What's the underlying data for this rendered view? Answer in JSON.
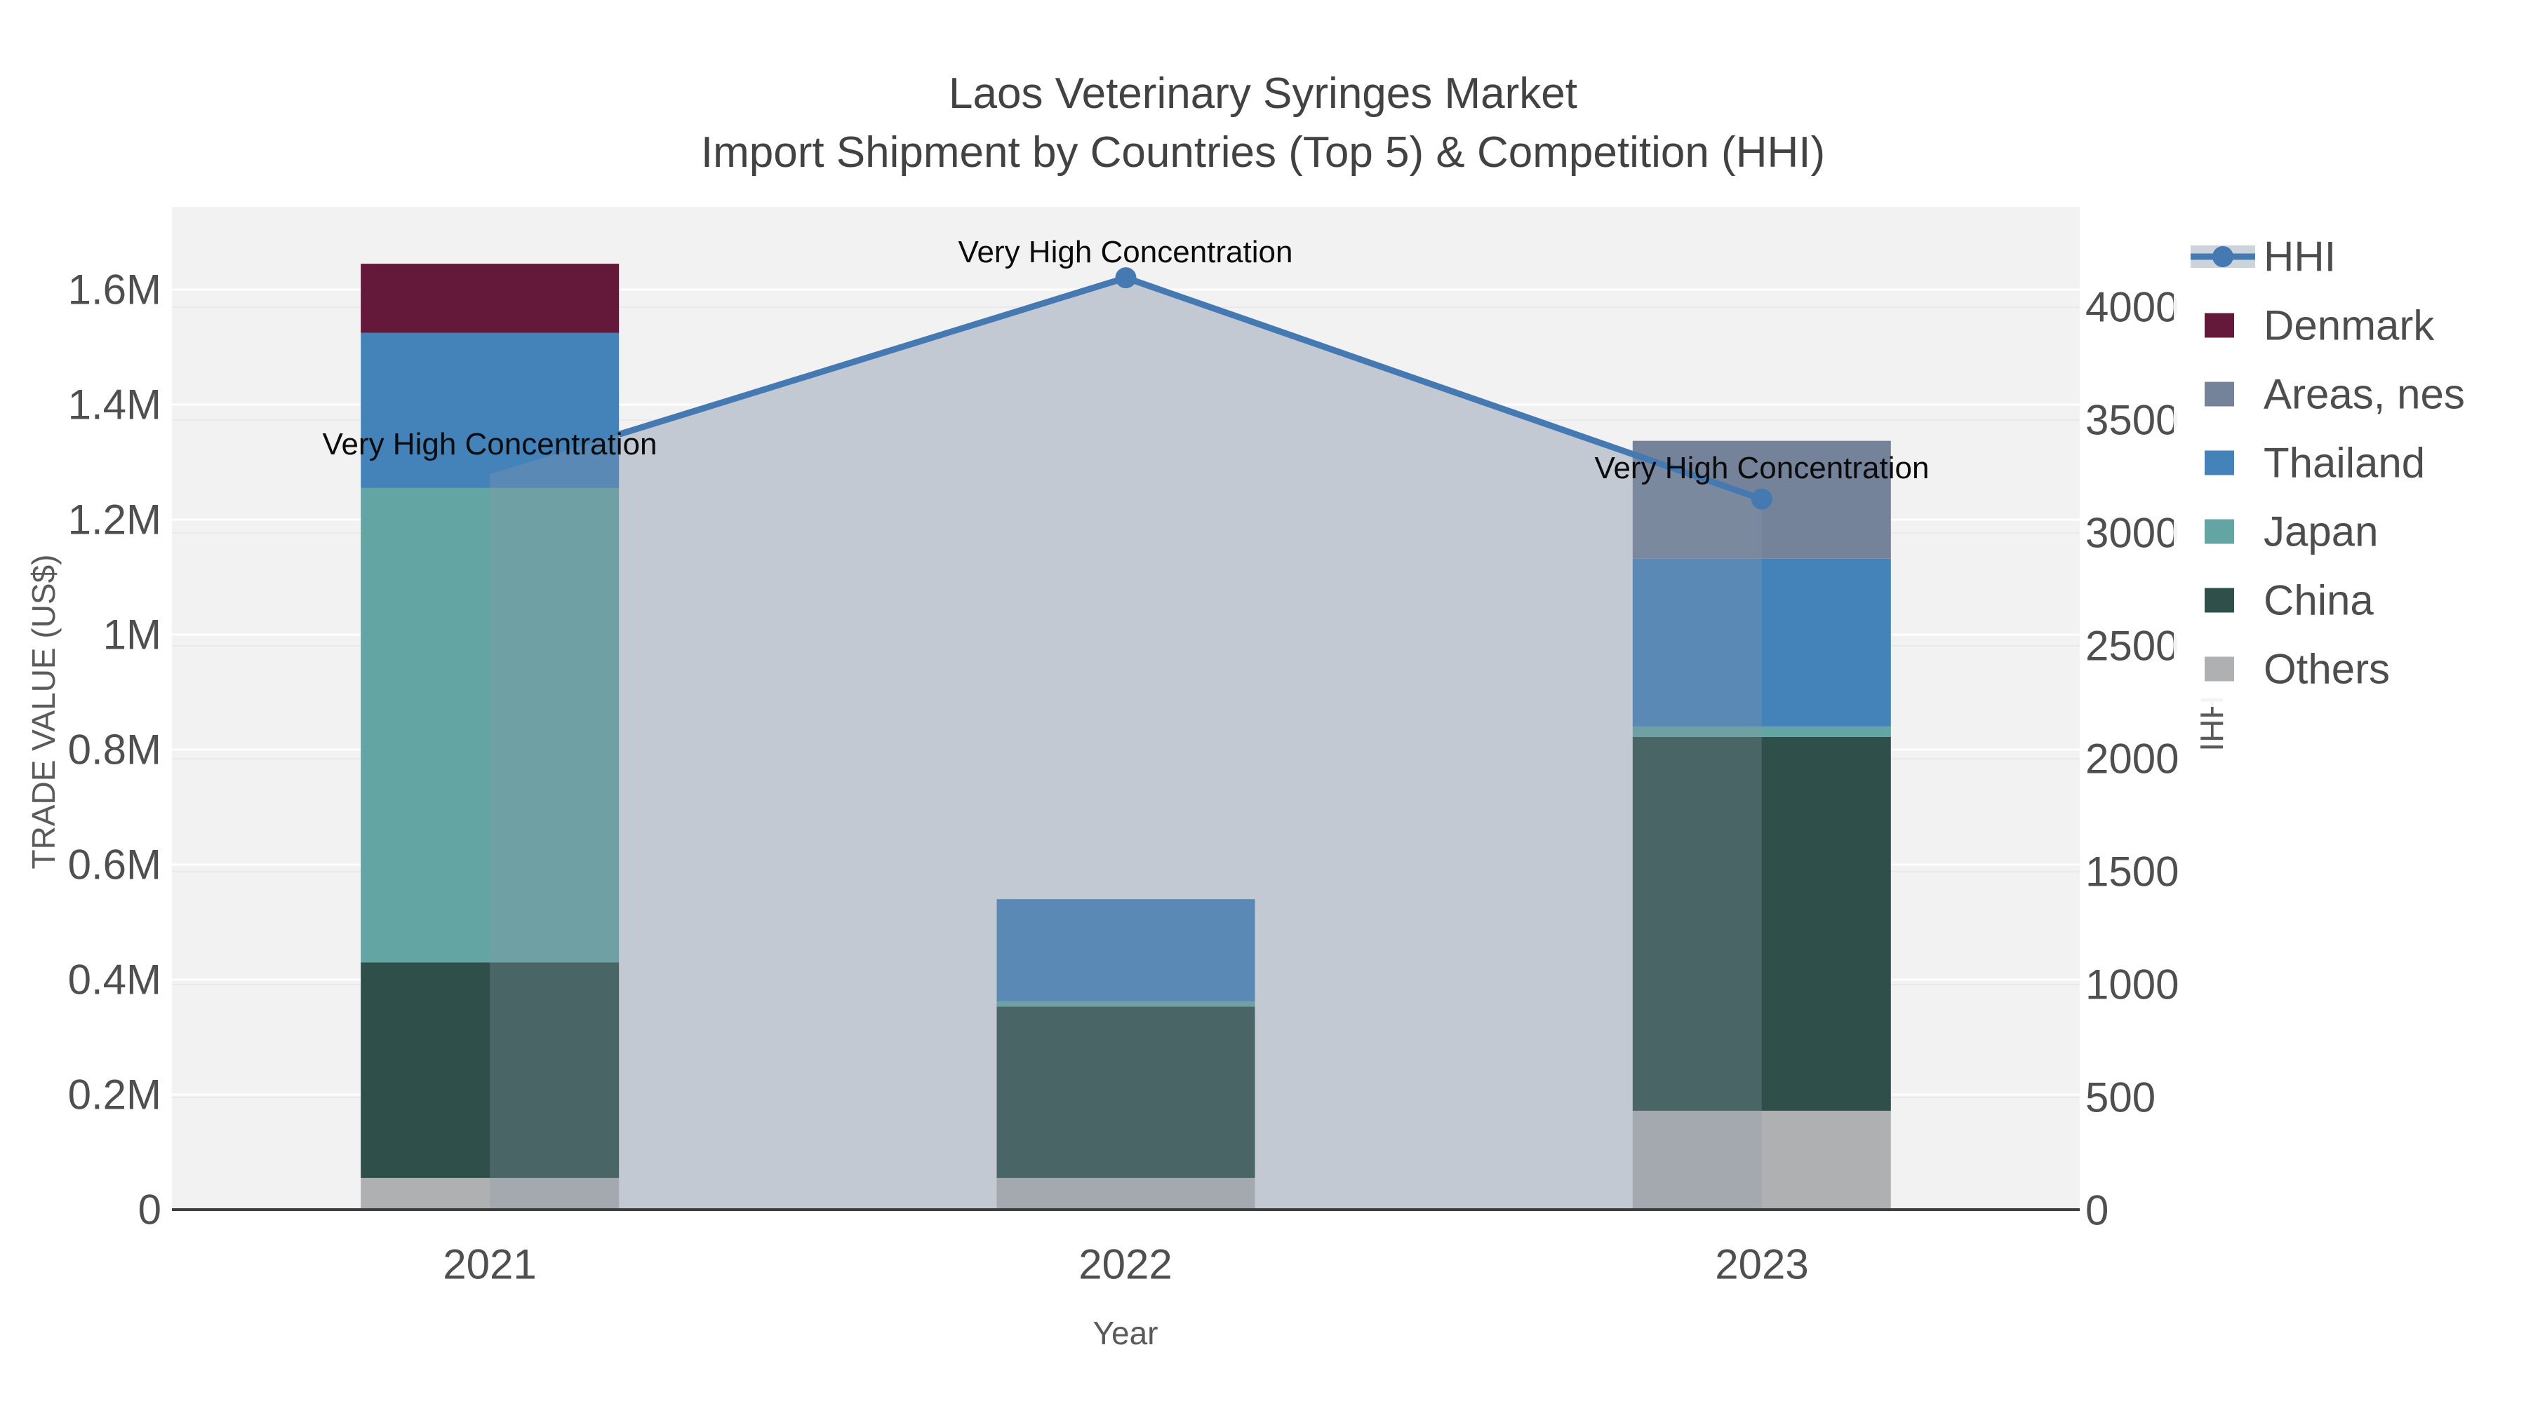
{
  "title": {
    "line1": "Laos Veterinary Syringes Market",
    "line2": "Import Shipment by Countries (Top 5) & Competition (HHI)"
  },
  "annotations": {
    "text": "Very High Concentration"
  },
  "axes": {
    "x": {
      "title": "Year",
      "ticks": [
        "2021",
        "2022",
        "2023"
      ]
    },
    "left": {
      "title": "TRADE VALUE (US$)",
      "ticks": [
        "0",
        "0.2M",
        "0.4M",
        "0.6M",
        "0.8M",
        "1M",
        "1.2M",
        "1.4M",
        "1.6M"
      ]
    },
    "right": {
      "title": "HHI",
      "ticks": [
        "0",
        "500",
        "1000",
        "1500",
        "2000",
        "2500",
        "3000",
        "3500",
        "4000"
      ]
    }
  },
  "legend": {
    "items": [
      {
        "label": "HHI",
        "color": "#4579b2",
        "fill_color": "#ccd3da",
        "type": "line"
      },
      {
        "label": "Denmark",
        "color": "#64183a",
        "type": "bar"
      },
      {
        "label": "Areas, nes",
        "color": "#74839a",
        "type": "bar"
      },
      {
        "label": "Thailand",
        "color": "#4483b9",
        "type": "bar"
      },
      {
        "label": "Japan",
        "color": "#63a5a2",
        "type": "bar"
      },
      {
        "label": "China",
        "color": "#2e4f4a",
        "type": "bar"
      },
      {
        "label": "Others",
        "color": "#aeb0b2",
        "type": "bar"
      }
    ]
  },
  "chart_data": {
    "type": "combo-stacked-bar-line",
    "title": "Laos Veterinary Syringes Market — Import Shipment by Countries (Top 5) & Competition (HHI)",
    "categories": [
      "2021",
      "2022",
      "2023"
    ],
    "xlabel": "Year",
    "ylabel_left": "TRADE VALUE (US$)",
    "ylabel_right": "HHI",
    "ylim_left": [
      0,
      1745000
    ],
    "ylim_right": [
      0,
      4440
    ],
    "grid": true,
    "legend_position": "right",
    "plot_bg": "#f2f2f3",
    "left_tick_values": [
      0,
      200000,
      400000,
      600000,
      800000,
      1000000,
      1200000,
      1400000,
      1600000
    ],
    "right_tick_values": [
      0,
      500,
      1000,
      1500,
      2000,
      2500,
      3000,
      3500,
      4000
    ],
    "bar_series": [
      {
        "name": "Others",
        "color": "#aeb0b2",
        "values": [
          55000,
          55000,
          172000
        ]
      },
      {
        "name": "China",
        "color": "#2e4f4a",
        "values": [
          375000,
          298000,
          650000
        ]
      },
      {
        "name": "Japan",
        "color": "#63a5a2",
        "values": [
          825000,
          9000,
          18000
        ]
      },
      {
        "name": "Thailand",
        "color": "#4483b9",
        "values": [
          270000,
          178000,
          292000
        ]
      },
      {
        "name": "Areas, nes",
        "color": "#74839a",
        "values": [
          0,
          0,
          205000
        ]
      },
      {
        "name": "Denmark",
        "color": "#64183a",
        "values": [
          120000,
          0,
          0
        ]
      }
    ],
    "bar_totals": [
      1645000,
      540000,
      1337000
    ],
    "hhi": {
      "name": "HHI",
      "values": [
        3260,
        4130,
        3150
      ],
      "color": "#4579b2",
      "area_fill_under": "rgba(217,221,229,0.95)",
      "area_fill_over": "rgba(140,152,170,0.30)",
      "annotation": "Very High Concentration"
    }
  }
}
